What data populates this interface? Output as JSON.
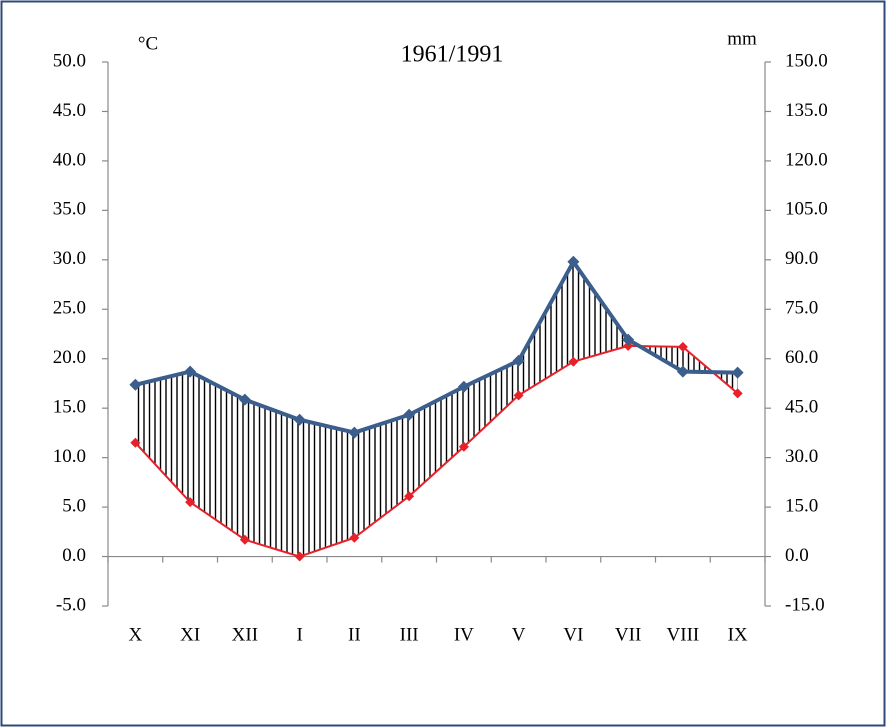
{
  "chart_data": {
    "type": "line",
    "title": "1961/1991",
    "y_label": "°C",
    "y2_label": "mm",
    "categories": [
      "X",
      "XI",
      "XII",
      "I",
      "II",
      "III",
      "IV",
      "V",
      "VI",
      "VII",
      "VIII",
      "IX"
    ],
    "series": [
      {
        "color": "#e8202a",
        "values": [
          11.5,
          5.5,
          1.7,
          0.0,
          1.9,
          6.1,
          11.1,
          16.3,
          19.7,
          21.3,
          21.2,
          16.5
        ]
      },
      {
        "color": "#3b5e8c",
        "axis": "y2",
        "values": [
          52.1,
          56.1,
          47.6,
          41.5,
          37.6,
          43.0,
          51.5,
          59.4,
          89.4,
          65.8,
          56.1,
          55.8
        ]
      }
    ],
    "ylim": [
      -5,
      50
    ],
    "yticks": [
      {
        "value": -5,
        "label": "-5.0"
      },
      {
        "value": 0,
        "label": "0.0"
      },
      {
        "value": 5,
        "label": "5.0"
      },
      {
        "value": 10,
        "label": "10.0"
      },
      {
        "value": 15,
        "label": "15.0"
      },
      {
        "value": 20,
        "label": "20.0"
      },
      {
        "value": 25,
        "label": "25.0"
      },
      {
        "value": 30,
        "label": "30.0"
      },
      {
        "value": 35,
        "label": "35.0"
      },
      {
        "value": 40,
        "label": "40.0"
      },
      {
        "value": 45,
        "label": "45.0"
      },
      {
        "value": 50,
        "label": "50.0"
      }
    ],
    "y2lim": [
      -15,
      150
    ],
    "y2ticks": [
      {
        "value": -15,
        "label": "-15.0"
      },
      {
        "value": 0,
        "label": "0.0"
      },
      {
        "value": 15,
        "label": "15.0"
      },
      {
        "value": 30,
        "label": "30.0"
      },
      {
        "value": 45,
        "label": "45.0"
      },
      {
        "value": 60,
        "label": "60.0"
      },
      {
        "value": 75,
        "label": "75.0"
      },
      {
        "value": 90,
        "label": "90.0"
      },
      {
        "value": 105,
        "label": "105.0"
      },
      {
        "value": 120,
        "label": "120.0"
      },
      {
        "value": 135,
        "label": "135.0"
      },
      {
        "value": 150,
        "label": "150.0"
      }
    ],
    "grid": false
  }
}
